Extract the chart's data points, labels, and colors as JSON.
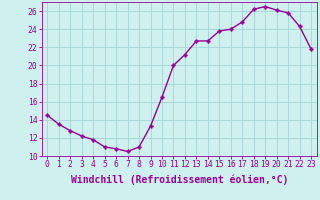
{
  "x": [
    0,
    1,
    2,
    3,
    4,
    5,
    6,
    7,
    8,
    9,
    10,
    11,
    12,
    13,
    14,
    15,
    16,
    17,
    18,
    19,
    20,
    21,
    22,
    23
  ],
  "y": [
    14.5,
    13.5,
    12.8,
    12.2,
    11.8,
    11.0,
    10.8,
    10.5,
    11.0,
    13.3,
    16.5,
    20.0,
    21.2,
    22.7,
    22.7,
    23.8,
    24.0,
    24.8,
    26.2,
    26.5,
    26.1,
    25.8,
    24.3,
    21.8
  ],
  "line_color": "#990099",
  "marker": "P",
  "marker_size": 2.5,
  "bg_color": "#cef0ee",
  "grid_color": "#aad8d8",
  "xlabel": "Windchill (Refroidissement éolien,°C)",
  "ylim": [
    10,
    27
  ],
  "xlim": [
    -0.5,
    23.5
  ],
  "yticks": [
    10,
    12,
    14,
    16,
    18,
    20,
    22,
    24,
    26
  ],
  "xticks": [
    0,
    1,
    2,
    3,
    4,
    5,
    6,
    7,
    8,
    9,
    10,
    11,
    12,
    13,
    14,
    15,
    16,
    17,
    18,
    19,
    20,
    21,
    22,
    23
  ],
  "tick_label_fontsize": 5.8,
  "xlabel_fontsize": 7.0,
  "line_width": 1.0
}
